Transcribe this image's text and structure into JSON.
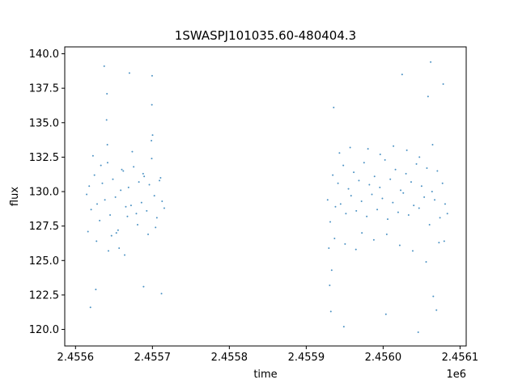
{
  "chart_data": {
    "type": "scatter",
    "title": "1SWASPJ101035.60-480404.3",
    "xlabel": "time",
    "ylabel": "flux",
    "x_offset_label": "1e6",
    "xlim": [
      2455586.0,
      2456108.0
    ],
    "ylim": [
      118.8,
      140.5
    ],
    "x_ticks": [
      2455600,
      2455700,
      2455800,
      2455900,
      2456000,
      2456100
    ],
    "x_tick_labels": [
      "2.4556",
      "2.4557",
      "2.4558",
      "2.4559",
      "2.4560",
      "2.4561"
    ],
    "y_ticks": [
      120.0,
      122.5,
      125.0,
      127.5,
      130.0,
      132.5,
      135.0,
      137.5,
      140.0
    ],
    "y_tick_labels": [
      "120.0",
      "122.5",
      "125.0",
      "127.5",
      "130.0",
      "132.5",
      "135.0",
      "137.5",
      "140.0"
    ],
    "grid": false,
    "series_color": "#1f77b4",
    "series": [
      {
        "x": [
          2455614.5,
          2455617.8,
          2455620.3,
          2455624.6,
          2455628.1,
          2455631.4,
          2455634.9,
          2455638.2,
          2455641.7,
          2455645.0,
          2455648.6,
          2455651.9,
          2455655.3,
          2455658.8,
          2455662.1,
          2455665.4,
          2455668.9,
          2455672.2,
          2455675.6,
          2455679.1,
          2455682.4,
          2455685.8,
          2455689.3,
          2455692.6,
          2455696.0,
          2455699.1,
          2455702.5,
          2455705.8,
          2455709.2,
          2455712.6,
          2455715.4,
          2455616.2,
          2455622.7,
          2455627.3,
          2455633.0,
          2455640.4,
          2455646.8,
          2455653.1,
          2455660.2,
          2455667.5,
          2455673.8,
          2455680.7,
          2455687.9,
          2455694.4,
          2455698.7,
          2455704.1,
          2455710.6,
          2455640.9,
          2455641.4,
          2455699.3,
          2455699.6,
          2455642.8,
          2455700.2,
          2455619.4,
          2455656.7,
          2455688.5,
          2455626.4,
          2455670.1,
          2455711.8,
          2455637.3,
          2455663.9
        ],
        "y": [
          129.8,
          130.4,
          128.7,
          131.2,
          129.1,
          127.9,
          130.6,
          129.4,
          132.1,
          128.3,
          130.9,
          129.6,
          127.2,
          130.1,
          131.5,
          128.9,
          130.3,
          129.0,
          131.8,
          128.4,
          130.7,
          129.2,
          131.1,
          128.6,
          130.5,
          132.4,
          129.7,
          128.1,
          130.8,
          129.3,
          128.8,
          127.1,
          132.6,
          126.4,
          131.9,
          135.2,
          126.8,
          127.0,
          131.6,
          128.2,
          132.9,
          127.6,
          131.3,
          126.9,
          133.7,
          127.4,
          131.0,
          137.1,
          133.4,
          136.3,
          138.4,
          125.7,
          134.1,
          121.6,
          125.9,
          123.1,
          122.9,
          138.6,
          122.6,
          139.1,
          125.4
        ]
      },
      {
        "x": [
          2455927.8,
          2455931.2,
          2455934.5,
          2455938.0,
          2455941.3,
          2455944.7,
          2455948.2,
          2455951.6,
          2455954.9,
          2455958.3,
          2455961.8,
          2455965.1,
          2455968.5,
          2455971.9,
          2455975.2,
          2455978.7,
          2455982.1,
          2455985.4,
          2455988.8,
          2455992.3,
          2455995.7,
          2455999.0,
          2456002.4,
          2456005.9,
          2456009.3,
          2456012.6,
          2456016.0,
          2456019.5,
          2456022.8,
          2456026.2,
          2456029.7,
          2456033.1,
          2456036.4,
          2456039.8,
          2456043.3,
          2456046.7,
          2456050.0,
          2456053.4,
          2456056.9,
          2456060.3,
          2456063.6,
          2456067.0,
          2456070.5,
          2456073.9,
          2456077.2,
          2456080.6,
          2456083.5,
          2455929.4,
          2455933.1,
          2455936.8,
          2455943.2,
          2455950.5,
          2455957.1,
          2455964.6,
          2455972.4,
          2455980.3,
          2455987.9,
          2455996.2,
          2456004.7,
          2456013.4,
          2456021.6,
          2456030.8,
          2456038.5,
          2456047.2,
          2456055.9,
          2456064.3,
          2456072.6,
          2456079.4,
          2455930.5,
          2455932.0,
          2455935.7,
          2456061.8,
          2456065.2,
          2456078.1,
          2455948.9,
          2456003.6,
          2456024.7,
          2456045.6,
          2456058.4,
          2456069.3
        ],
        "y": [
          129.4,
          127.8,
          131.2,
          128.9,
          130.6,
          129.1,
          131.9,
          128.4,
          130.2,
          129.7,
          131.4,
          128.6,
          130.8,
          129.3,
          132.1,
          128.2,
          130.5,
          129.8,
          131.1,
          128.7,
          130.3,
          129.5,
          132.3,
          128.0,
          130.9,
          129.2,
          131.6,
          128.5,
          130.1,
          129.9,
          131.3,
          128.3,
          130.7,
          129.0,
          132.0,
          128.8,
          130.4,
          129.6,
          131.7,
          127.6,
          130.0,
          129.4,
          131.5,
          128.1,
          130.6,
          129.1,
          128.4,
          125.9,
          124.3,
          126.6,
          132.8,
          126.2,
          133.2,
          125.8,
          127.0,
          133.1,
          126.5,
          132.7,
          126.9,
          133.3,
          126.1,
          133.0,
          125.7,
          132.5,
          124.9,
          133.4,
          126.3,
          126.4,
          123.2,
          121.3,
          136.1,
          139.4,
          122.4,
          137.8,
          120.2,
          121.1,
          138.5,
          119.8,
          136.9,
          121.4
        ]
      }
    ]
  }
}
